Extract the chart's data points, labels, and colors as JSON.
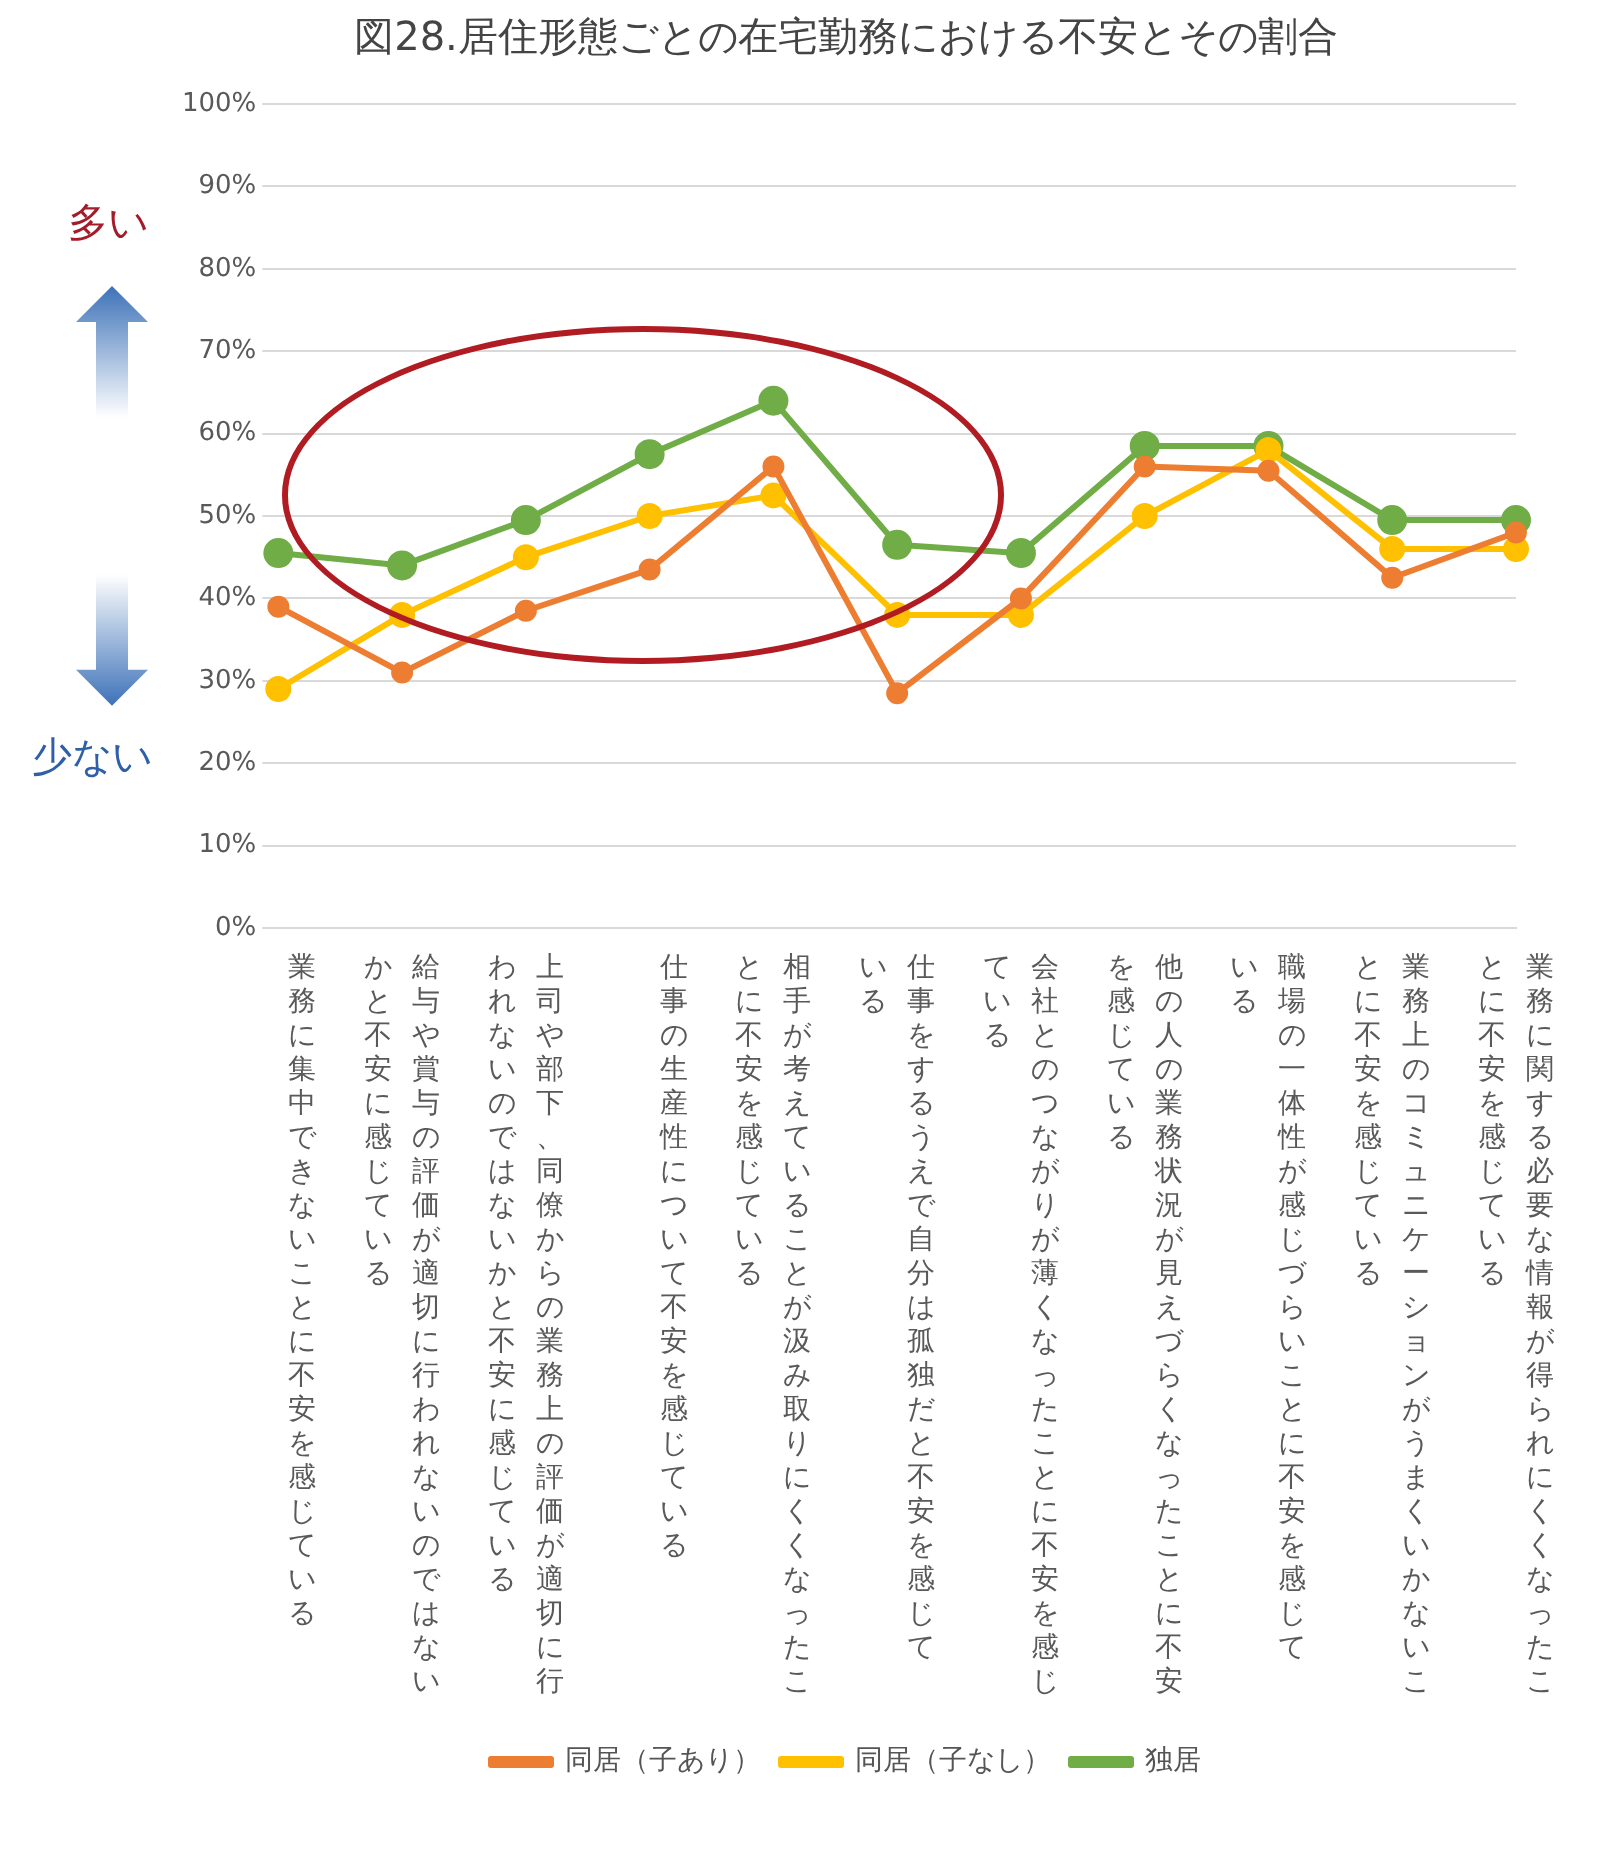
{
  "chart_data": {
    "type": "line",
    "title": "図28.居住形態ごとの在宅勤務における不安とその割合",
    "categories": [
      "業務に集中できないことに不安を感じている",
      "給与や賞与の評価が適切に行われないのではないかと不安に感じている",
      "上司や部下、同僚からの業務上の評価が適切に行われないのではないかと不安に感じている",
      "仕事の生産性について不安を感じている",
      "相手が考えていることが汲み取りにくくなったことに不安を感じている",
      "仕事をするうえで自分は孤独だと不安を感じている",
      "会社とのつながりが薄くなったことに不安を感じている",
      "他の人の業務状況が見えづらくなったことに不安を感じている",
      "職場の一体性が感じづらいことに不安を感じている",
      "業務上のコミュニケーションがうまくいかないことに不安を感じている",
      "業務に関する必要な情報が得られにくくなったことに不安を感じている"
    ],
    "series": [
      {
        "name": "同居（子あり）",
        "color": "#ed7d31",
        "values": [
          39,
          31,
          38.5,
          43.5,
          56,
          28.5,
          40,
          56,
          55.5,
          42.5,
          48
        ]
      },
      {
        "name": "同居（子なし）",
        "color": "#ffc000",
        "values": [
          29,
          38,
          45,
          50,
          52.5,
          38,
          38,
          50,
          58,
          46,
          46
        ]
      },
      {
        "name": "独居",
        "color": "#70ad47",
        "values": [
          45.5,
          44,
          49.5,
          57.5,
          64,
          46.5,
          45.5,
          58.5,
          58.5,
          49.5,
          49.5
        ]
      }
    ],
    "ylim": [
      0,
      100
    ],
    "yticks": [
      {
        "value": 0,
        "label": "0%"
      },
      {
        "value": 10,
        "label": "10%"
      },
      {
        "value": 20,
        "label": "20%"
      },
      {
        "value": 30,
        "label": "30%"
      },
      {
        "value": 40,
        "label": "40%"
      },
      {
        "value": 50,
        "label": "50%"
      },
      {
        "value": 60,
        "label": "60%"
      },
      {
        "value": 70,
        "label": "70%"
      },
      {
        "value": 80,
        "label": "80%"
      },
      {
        "value": 90,
        "label": "90%"
      },
      {
        "value": 100,
        "label": "100%"
      }
    ],
    "grid": "y",
    "legend": "bottom",
    "marker": "circle",
    "line_style": "solid",
    "annotations": [
      "多い",
      "少ない"
    ]
  }
}
